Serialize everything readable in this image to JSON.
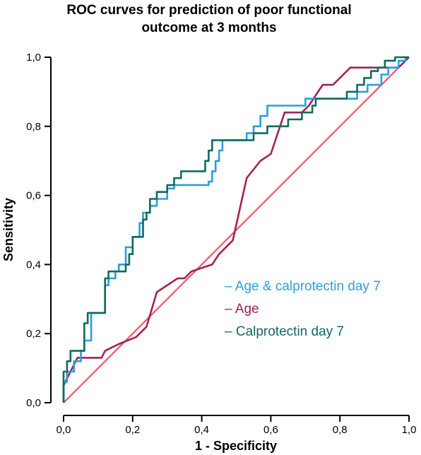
{
  "chart_data": {
    "type": "line",
    "title_lines": [
      "ROC curves for prediction of poor functional",
      "outcome at 3 months"
    ],
    "xlabel": "1 - Specificity",
    "ylabel": "Sensitivity",
    "xlim": [
      0,
      1
    ],
    "ylim": [
      0,
      1
    ],
    "x_ticks": [
      "0,0",
      "0,2",
      "0,4",
      "0,6",
      "0,8",
      "1,0"
    ],
    "y_ticks": [
      "0,0",
      "0,2",
      "0,4",
      "0,6",
      "0,8",
      "1,0"
    ],
    "grid": false,
    "legend_position": "right-middle",
    "legend_marker": "–",
    "reference_line": {
      "x": [
        0,
        1
      ],
      "y": [
        0,
        1
      ],
      "color": "#f0565e"
    },
    "series": [
      {
        "name": "Age & calprotectin day 7",
        "color": "#2b9fd9",
        "points": [
          [
            0,
            0
          ],
          [
            0,
            0.06
          ],
          [
            0.01,
            0.06
          ],
          [
            0.01,
            0.09
          ],
          [
            0.03,
            0.09
          ],
          [
            0.03,
            0.12
          ],
          [
            0.05,
            0.12
          ],
          [
            0.05,
            0.15
          ],
          [
            0.06,
            0.15
          ],
          [
            0.06,
            0.18
          ],
          [
            0.08,
            0.18
          ],
          [
            0.08,
            0.26
          ],
          [
            0.12,
            0.26
          ],
          [
            0.12,
            0.34
          ],
          [
            0.13,
            0.34
          ],
          [
            0.13,
            0.36
          ],
          [
            0.15,
            0.36
          ],
          [
            0.15,
            0.38
          ],
          [
            0.16,
            0.38
          ],
          [
            0.16,
            0.4
          ],
          [
            0.18,
            0.4
          ],
          [
            0.18,
            0.45
          ],
          [
            0.2,
            0.45
          ],
          [
            0.2,
            0.48
          ],
          [
            0.22,
            0.48
          ],
          [
            0.22,
            0.52
          ],
          [
            0.23,
            0.52
          ],
          [
            0.23,
            0.55
          ],
          [
            0.25,
            0.55
          ],
          [
            0.25,
            0.57
          ],
          [
            0.27,
            0.57
          ],
          [
            0.27,
            0.59
          ],
          [
            0.3,
            0.59
          ],
          [
            0.3,
            0.62
          ],
          [
            0.32,
            0.62
          ],
          [
            0.32,
            0.63
          ],
          [
            0.42,
            0.63
          ],
          [
            0.42,
            0.64
          ],
          [
            0.43,
            0.64
          ],
          [
            0.43,
            0.67
          ],
          [
            0.44,
            0.67
          ],
          [
            0.44,
            0.7
          ],
          [
            0.45,
            0.7
          ],
          [
            0.45,
            0.73
          ],
          [
            0.46,
            0.73
          ],
          [
            0.46,
            0.76
          ],
          [
            0.53,
            0.76
          ],
          [
            0.53,
            0.78
          ],
          [
            0.55,
            0.78
          ],
          [
            0.55,
            0.8
          ],
          [
            0.57,
            0.8
          ],
          [
            0.57,
            0.83
          ],
          [
            0.59,
            0.83
          ],
          [
            0.59,
            0.86
          ],
          [
            0.7,
            0.86
          ],
          [
            0.7,
            0.88
          ],
          [
            0.85,
            0.88
          ],
          [
            0.85,
            0.9
          ],
          [
            0.88,
            0.9
          ],
          [
            0.88,
            0.92
          ],
          [
            0.92,
            0.92
          ],
          [
            0.92,
            0.95
          ],
          [
            0.94,
            0.95
          ],
          [
            0.94,
            0.97
          ],
          [
            0.97,
            0.97
          ],
          [
            0.97,
            0.99
          ],
          [
            0.99,
            0.99
          ],
          [
            0.99,
            1.0
          ],
          [
            1.0,
            1.0
          ]
        ]
      },
      {
        "name": "Age",
        "color": "#a3225a",
        "points": [
          [
            0,
            0
          ],
          [
            0,
            0.05
          ],
          [
            0.04,
            0.13
          ],
          [
            0.11,
            0.13
          ],
          [
            0.12,
            0.15
          ],
          [
            0.16,
            0.17
          ],
          [
            0.21,
            0.19
          ],
          [
            0.24,
            0.22
          ],
          [
            0.27,
            0.32
          ],
          [
            0.33,
            0.36
          ],
          [
            0.35,
            0.36
          ],
          [
            0.37,
            0.38
          ],
          [
            0.43,
            0.4
          ],
          [
            0.45,
            0.43
          ],
          [
            0.49,
            0.47
          ],
          [
            0.53,
            0.65
          ],
          [
            0.57,
            0.7
          ],
          [
            0.6,
            0.72
          ],
          [
            0.64,
            0.84
          ],
          [
            0.69,
            0.84
          ],
          [
            0.71,
            0.86
          ],
          [
            0.75,
            0.92
          ],
          [
            0.78,
            0.92
          ],
          [
            0.83,
            0.97
          ],
          [
            0.97,
            0.97
          ],
          [
            1.0,
            1.0
          ]
        ]
      },
      {
        "name": "Calprotectin  day 7",
        "color": "#0f6b5e",
        "points": [
          [
            0,
            0
          ],
          [
            0,
            0.09
          ],
          [
            0.01,
            0.09
          ],
          [
            0.01,
            0.12
          ],
          [
            0.02,
            0.12
          ],
          [
            0.02,
            0.15
          ],
          [
            0.06,
            0.15
          ],
          [
            0.06,
            0.23
          ],
          [
            0.07,
            0.23
          ],
          [
            0.07,
            0.26
          ],
          [
            0.12,
            0.26
          ],
          [
            0.12,
            0.36
          ],
          [
            0.13,
            0.36
          ],
          [
            0.13,
            0.38
          ],
          [
            0.18,
            0.38
          ],
          [
            0.18,
            0.4
          ],
          [
            0.19,
            0.4
          ],
          [
            0.19,
            0.43
          ],
          [
            0.2,
            0.43
          ],
          [
            0.2,
            0.48
          ],
          [
            0.23,
            0.48
          ],
          [
            0.23,
            0.53
          ],
          [
            0.24,
            0.53
          ],
          [
            0.24,
            0.55
          ],
          [
            0.25,
            0.55
          ],
          [
            0.25,
            0.59
          ],
          [
            0.27,
            0.59
          ],
          [
            0.27,
            0.61
          ],
          [
            0.3,
            0.61
          ],
          [
            0.3,
            0.63
          ],
          [
            0.32,
            0.63
          ],
          [
            0.32,
            0.65
          ],
          [
            0.34,
            0.65
          ],
          [
            0.34,
            0.67
          ],
          [
            0.41,
            0.67
          ],
          [
            0.41,
            0.7
          ],
          [
            0.42,
            0.7
          ],
          [
            0.42,
            0.73
          ],
          [
            0.43,
            0.73
          ],
          [
            0.43,
            0.76
          ],
          [
            0.55,
            0.76
          ],
          [
            0.55,
            0.78
          ],
          [
            0.59,
            0.78
          ],
          [
            0.59,
            0.8
          ],
          [
            0.65,
            0.8
          ],
          [
            0.65,
            0.82
          ],
          [
            0.69,
            0.82
          ],
          [
            0.69,
            0.84
          ],
          [
            0.72,
            0.84
          ],
          [
            0.72,
            0.86
          ],
          [
            0.73,
            0.86
          ],
          [
            0.73,
            0.88
          ],
          [
            0.82,
            0.88
          ],
          [
            0.82,
            0.9
          ],
          [
            0.85,
            0.9
          ],
          [
            0.85,
            0.92
          ],
          [
            0.87,
            0.92
          ],
          [
            0.87,
            0.94
          ],
          [
            0.89,
            0.94
          ],
          [
            0.89,
            0.96
          ],
          [
            0.91,
            0.96
          ],
          [
            0.91,
            0.97
          ],
          [
            0.93,
            0.97
          ],
          [
            0.93,
            0.99
          ],
          [
            0.96,
            0.99
          ],
          [
            0.96,
            1.0
          ],
          [
            1.0,
            1.0
          ]
        ]
      }
    ]
  }
}
